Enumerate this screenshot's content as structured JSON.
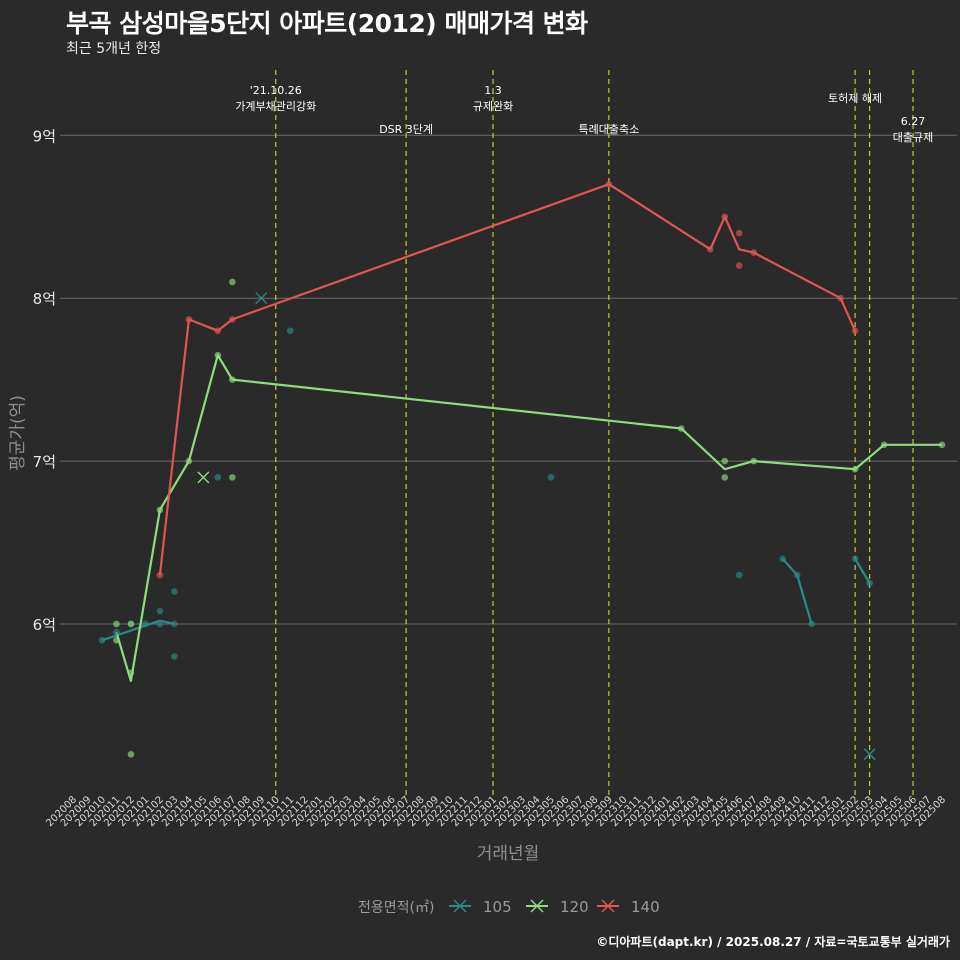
{
  "chart_data": {
    "type": "line",
    "title": "부곡 삼성마을5단지 아파트(2012) 매매가격 변화",
    "subtitle": "최근 5개년 한정",
    "xlabel": "거래년월",
    "ylabel": "평균가(억)",
    "ylim": [
      4.95,
      9.45
    ],
    "yticks": [
      6,
      7,
      8,
      9
    ],
    "ytick_labels": [
      "6억",
      "7억",
      "8억",
      "9억"
    ],
    "x_categories": [
      "202008",
      "202009",
      "202010",
      "202011",
      "202012",
      "202101",
      "202102",
      "202103",
      "202104",
      "202105",
      "202106",
      "202107",
      "202108",
      "202109",
      "202110",
      "202111",
      "202112",
      "202201",
      "202202",
      "202203",
      "202204",
      "202205",
      "202206",
      "202207",
      "202208",
      "202209",
      "202210",
      "202211",
      "202212",
      "202301",
      "202302",
      "202303",
      "202304",
      "202305",
      "202306",
      "202307",
      "202308",
      "202309",
      "202310",
      "202311",
      "202312",
      "202401",
      "202402",
      "202403",
      "202404",
      "202405",
      "202406",
      "202407",
      "202408",
      "202409",
      "202410",
      "202411",
      "202412",
      "202501",
      "202502",
      "202503",
      "202504",
      "202505",
      "202506",
      "202507",
      "202508"
    ],
    "legend_title": "전용면적(㎡)",
    "legend_position": "bottom",
    "series": [
      {
        "name": "105",
        "color": "#2a8a89",
        "lines": [
          [
            [
              "202010",
              5.9
            ],
            [
              "202011",
              5.93
            ],
            [
              "202102",
              6.02
            ],
            [
              "202103",
              6.0
            ]
          ],
          [
            [
              "202409",
              6.4
            ],
            [
              "202410",
              6.3
            ],
            [
              "202411",
              6.0
            ]
          ],
          [
            [
              "202502",
              6.4
            ],
            [
              "202503",
              6.25
            ]
          ]
        ],
        "points": [
          [
            "202010",
            5.9
          ],
          [
            "202011",
            5.95
          ],
          [
            "202012",
            6.0
          ],
          [
            "202101",
            6.0
          ],
          [
            "202102",
            6.08
          ],
          [
            "202102",
            6.0
          ],
          [
            "202103",
            6.0
          ],
          [
            "202103",
            6.2
          ],
          [
            "202103",
            5.8
          ],
          [
            "202106",
            6.9
          ],
          [
            "202111",
            7.8
          ],
          [
            "202305",
            6.9
          ],
          [
            "202406",
            6.3
          ],
          [
            "202409",
            6.4
          ],
          [
            "202410",
            6.3
          ],
          [
            "202411",
            6.0
          ],
          [
            "202502",
            6.4
          ],
          [
            "202503",
            6.25
          ]
        ],
        "cancelled": [
          [
            "202109",
            8.0
          ],
          [
            "202503",
            5.2
          ]
        ]
      },
      {
        "name": "120",
        "color": "#8edc7e",
        "lines": [
          [
            [
              "202011",
              5.95
            ],
            [
              "202012",
              5.65
            ],
            [
              "202102",
              6.7
            ],
            [
              "202104",
              7.0
            ],
            [
              "202106",
              7.65
            ],
            [
              "202107",
              7.5
            ],
            [
              "202402",
              7.2
            ],
            [
              "202405",
              6.95
            ],
            [
              "202407",
              7.0
            ],
            [
              "202502",
              6.95
            ],
            [
              "202504",
              7.1
            ],
            [
              "202508",
              7.1
            ]
          ]
        ],
        "points": [
          [
            "202011",
            6.0
          ],
          [
            "202011",
            5.9
          ],
          [
            "202012",
            6.0
          ],
          [
            "202012",
            5.7
          ],
          [
            "202012",
            5.2
          ],
          [
            "202102",
            6.7
          ],
          [
            "202104",
            7.0
          ],
          [
            "202106",
            7.65
          ],
          [
            "202107",
            8.1
          ],
          [
            "202107",
            6.9
          ],
          [
            "202107",
            7.5
          ],
          [
            "202402",
            7.2
          ],
          [
            "202405",
            7.0
          ],
          [
            "202405",
            6.9
          ],
          [
            "202407",
            7.0
          ],
          [
            "202502",
            6.95
          ],
          [
            "202504",
            7.1
          ],
          [
            "202508",
            7.1
          ]
        ],
        "cancelled": [
          [
            "202105",
            6.9
          ]
        ]
      },
      {
        "name": "140",
        "color": "#e05555",
        "lines": [
          [
            [
              "202102",
              6.3
            ],
            [
              "202104",
              7.87
            ],
            [
              "202106",
              7.8
            ],
            [
              "202107",
              7.87
            ],
            [
              "202309",
              8.7
            ],
            [
              "202404",
              8.3
            ],
            [
              "202405",
              8.5
            ],
            [
              "202406",
              8.3
            ],
            [
              "202407",
              8.28
            ],
            [
              "202501",
              8.0
            ],
            [
              "202502",
              7.8
            ]
          ]
        ],
        "points": [
          [
            "202102",
            6.3
          ],
          [
            "202104",
            7.87
          ],
          [
            "202106",
            7.8
          ],
          [
            "202107",
            7.87
          ],
          [
            "202309",
            8.7
          ],
          [
            "202404",
            8.3
          ],
          [
            "202405",
            8.5
          ],
          [
            "202406",
            8.4
          ],
          [
            "202406",
            8.2
          ],
          [
            "202407",
            8.28
          ],
          [
            "202501",
            8.0
          ],
          [
            "202502",
            7.8
          ]
        ],
        "cancelled": []
      }
    ],
    "annotations": [
      {
        "x": "202110",
        "lines": [
          "'21.10.26",
          "가계부채관리강화"
        ]
      },
      {
        "x": "202207",
        "lines": [
          "DSR 3단계"
        ]
      },
      {
        "x": "202301",
        "lines": [
          "1.3",
          "규제완화"
        ]
      },
      {
        "x": "202309",
        "lines": [
          "특례대출축소"
        ]
      },
      {
        "x": "202502",
        "lines": [
          "토허제 해제"
        ]
      },
      {
        "x": "202503",
        "lines": []
      },
      {
        "x": "202506",
        "lines": [
          "6.27",
          "대출규제"
        ]
      }
    ],
    "credit": "©디아파트(dapt.kr) / 2025.08.27 / 자료=국토교통부 실거래가"
  }
}
